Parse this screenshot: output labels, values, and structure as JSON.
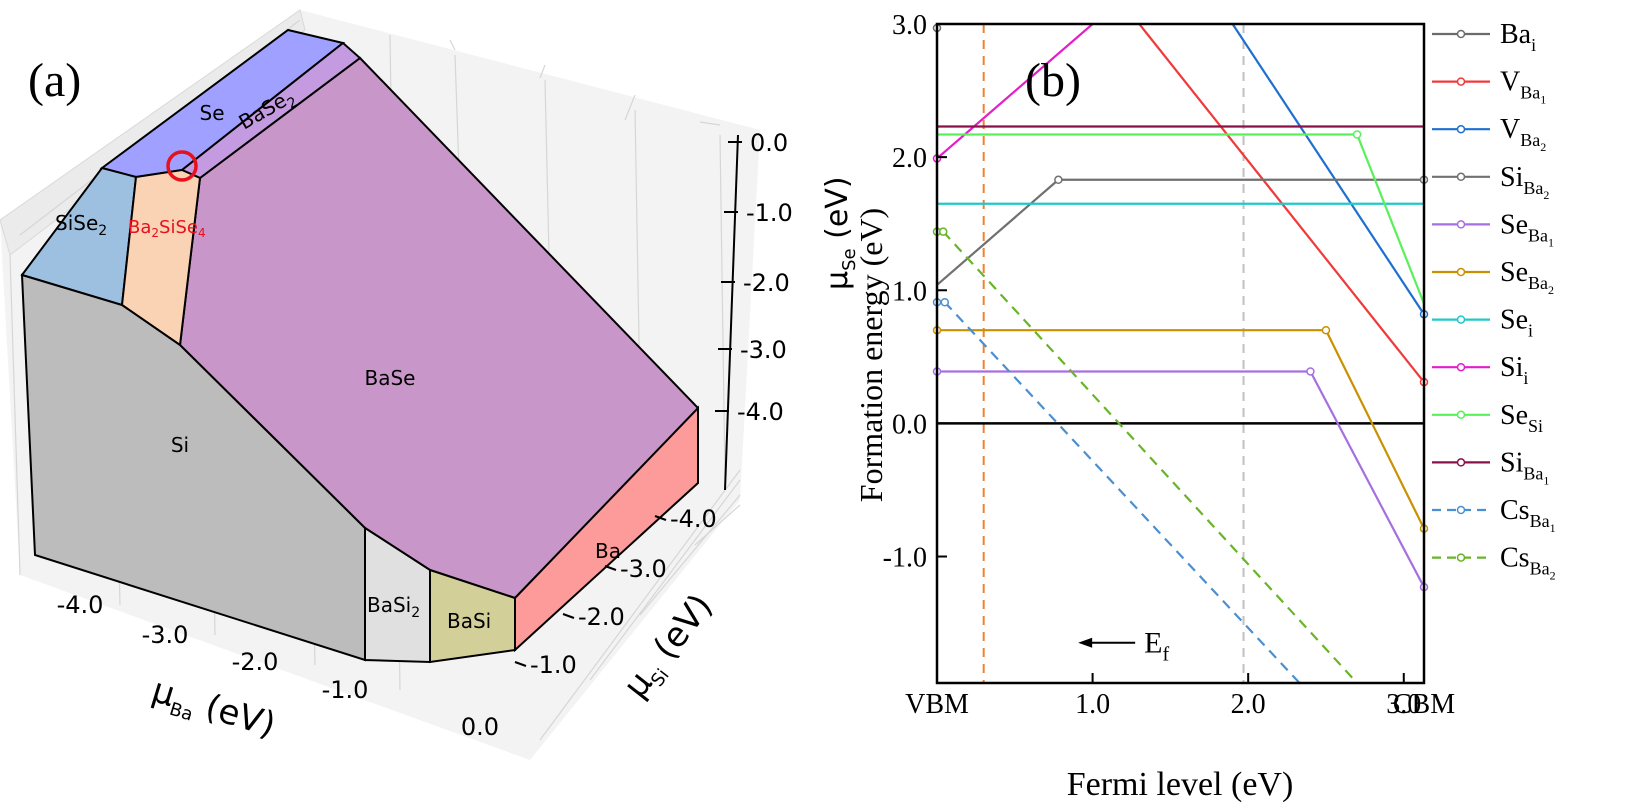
{
  "panel_a": {
    "label": "(a)",
    "z_axis": {
      "symbol": "μ",
      "subscript": "Se",
      "unit": "(eV)",
      "ticks": [
        "0.0",
        "-1.0",
        "-2.0",
        "-3.0",
        "-4.0"
      ]
    },
    "x_axis": {
      "symbol": "μ",
      "subscript": "Ba",
      "unit": "(eV)",
      "ticks": [
        "-4.0",
        "-3.0",
        "-2.0",
        "-1.0",
        "0.0"
      ]
    },
    "y_axis": {
      "symbol": "μ",
      "subscript": "Si",
      "unit": "(eV)",
      "ticks": [
        "-4.0",
        "-3.0",
        "-2.0",
        "-1.0"
      ]
    },
    "regions": [
      {
        "id": "Se",
        "text": "Se",
        "sub": "",
        "tail": "",
        "color": "#9fa0ff"
      },
      {
        "id": "BaSe2",
        "text": "BaSe",
        "sub": "2",
        "tail": "",
        "color": "#c49be0"
      },
      {
        "id": "SiSe2",
        "text": "SiSe",
        "sub": "2",
        "tail": "",
        "color": "#9ec0e0"
      },
      {
        "id": "Ba2SiSe4",
        "text": "Ba",
        "sub": "2",
        "tail": "SiSe",
        "sub2": "4",
        "color": "#fad2b4",
        "label_color": "#e8101c"
      },
      {
        "id": "BaSe",
        "text": "BaSe",
        "sub": "",
        "tail": "",
        "color": "#c996c9"
      },
      {
        "id": "Si",
        "text": "Si",
        "sub": "",
        "tail": "",
        "color": "#bcbcbc"
      },
      {
        "id": "BaSi2",
        "text": "BaSi",
        "sub": "2",
        "tail": "",
        "color": "#e0e0e0"
      },
      {
        "id": "BaSi",
        "text": "BaSi",
        "sub": "",
        "tail": "",
        "color": "#d3cf98"
      },
      {
        "id": "Ba",
        "text": "Ba",
        "sub": "",
        "tail": "",
        "color": "#fd9a9a"
      }
    ],
    "marker_color": "#e8101c"
  },
  "chart_data": {
    "type": "line",
    "title": "(b)",
    "xlabel": "Fermi level (eV)",
    "ylabel": "Formation energy (eV)",
    "xlim": [
      0,
      3.13
    ],
    "ylim": [
      -1.95,
      3.0
    ],
    "grid": false,
    "legend_position": "right",
    "x_ticks": [
      {
        "value": 0,
        "label": "VBM"
      },
      {
        "value": 1.0,
        "label": "1.0"
      },
      {
        "value": 2.0,
        "label": "2.0"
      },
      {
        "value": 3.0,
        "label": "3.0"
      },
      {
        "value": 3.13,
        "label": "CBM"
      }
    ],
    "y_ticks": [
      {
        "value": 3.0,
        "label": "3.0"
      },
      {
        "value": 2.0,
        "label": "2.0"
      },
      {
        "value": 1.0,
        "label": "1.0"
      },
      {
        "value": 0.0,
        "label": "0.0"
      },
      {
        "value": -1.0,
        "label": "-1.0"
      }
    ],
    "zero_line": 0,
    "vlines": [
      {
        "x": 0.3,
        "color": "#f08030",
        "style": "dashed"
      },
      {
        "x": 1.97,
        "color": "#c0c0c0",
        "style": "dashed"
      }
    ],
    "annotation": {
      "text": "E",
      "sub": "f",
      "arrow": "left",
      "x": 1.37,
      "y": -1.7
    },
    "series": [
      {
        "name": "Ba",
        "sub": "i",
        "sub2": "",
        "color": "#6b6b6b",
        "dash": false,
        "points": [
          [
            0,
            2.97
          ]
        ],
        "open_circles": [
          [
            0,
            2.97
          ]
        ]
      },
      {
        "name": "V",
        "sub": "Ba",
        "sub2": "1",
        "color": "#f03a3a",
        "dash": false,
        "points": [
          [
            1.3,
            3.0
          ],
          [
            3.13,
            0.31
          ]
        ],
        "open_circles": [
          [
            3.13,
            0.31
          ]
        ]
      },
      {
        "name": "V",
        "sub": "Ba",
        "sub2": "2",
        "color": "#1f6fcf",
        "dash": false,
        "points": [
          [
            1.9,
            3.0
          ],
          [
            3.13,
            0.82
          ]
        ],
        "open_circles": [
          [
            3.13,
            0.82
          ]
        ]
      },
      {
        "name": "Si",
        "sub": "Ba",
        "sub2": "2",
        "color": "#707070",
        "dash": false,
        "points": [
          [
            0,
            1.04
          ],
          [
            0.78,
            1.83
          ],
          [
            3.13,
            1.83
          ]
        ],
        "open_circles": [
          [
            0.78,
            1.83
          ],
          [
            3.13,
            1.83
          ]
        ]
      },
      {
        "name": "Se",
        "sub": "Ba",
        "sub2": "1",
        "color": "#a66fe0",
        "dash": false,
        "points": [
          [
            0,
            0.39
          ],
          [
            2.4,
            0.39
          ],
          [
            3.13,
            -1.23
          ]
        ],
        "open_circles": [
          [
            0,
            0.39
          ],
          [
            2.4,
            0.39
          ],
          [
            3.13,
            -1.23
          ]
        ]
      },
      {
        "name": "Se",
        "sub": "Ba",
        "sub2": "2",
        "color": "#c99000",
        "dash": false,
        "points": [
          [
            0,
            0.7
          ],
          [
            2.5,
            0.7
          ],
          [
            3.13,
            -0.79
          ]
        ],
        "open_circles": [
          [
            0,
            0.7
          ],
          [
            2.5,
            0.7
          ],
          [
            3.13,
            -0.79
          ]
        ]
      },
      {
        "name": "Se",
        "sub": "i",
        "sub2": "",
        "color": "#20c8cc",
        "dash": false,
        "points": [
          [
            0,
            1.65
          ],
          [
            3.13,
            1.65
          ]
        ],
        "open_circles": []
      },
      {
        "name": "Si",
        "sub": "i",
        "sub2": "",
        "color": "#e31ec9",
        "dash": false,
        "points": [
          [
            0,
            1.99
          ],
          [
            1.0,
            3.0
          ]
        ],
        "open_circles": [
          [
            0,
            1.99
          ]
        ]
      },
      {
        "name": "Se",
        "sub": "Si",
        "sub2": "",
        "color": "#5af05a",
        "dash": false,
        "points": [
          [
            0,
            2.17
          ],
          [
            2.7,
            2.17
          ],
          [
            3.13,
            0.9
          ]
        ],
        "open_circles": [
          [
            2.7,
            2.17
          ]
        ]
      },
      {
        "name": "Si",
        "sub": "Ba",
        "sub2": "1",
        "color": "#8b1048",
        "dash": false,
        "points": [
          [
            0,
            2.23
          ],
          [
            3.13,
            2.23
          ]
        ],
        "open_circles": []
      },
      {
        "name": "Cs",
        "sub": "Ba",
        "sub2": "1",
        "color": "#4a8fd0",
        "dash": true,
        "points": [
          [
            0.05,
            0.91
          ],
          [
            2.33,
            -1.95
          ]
        ],
        "open_circles": [
          [
            0,
            0.91
          ],
          [
            0.05,
            0.91
          ]
        ]
      },
      {
        "name": "Cs",
        "sub": "Ba",
        "sub2": "2",
        "color": "#69b428",
        "dash": true,
        "points": [
          [
            0.04,
            1.44
          ],
          [
            2.7,
            -1.95
          ]
        ],
        "open_circles": [
          [
            0,
            1.44
          ],
          [
            0.04,
            1.44
          ]
        ]
      }
    ]
  }
}
